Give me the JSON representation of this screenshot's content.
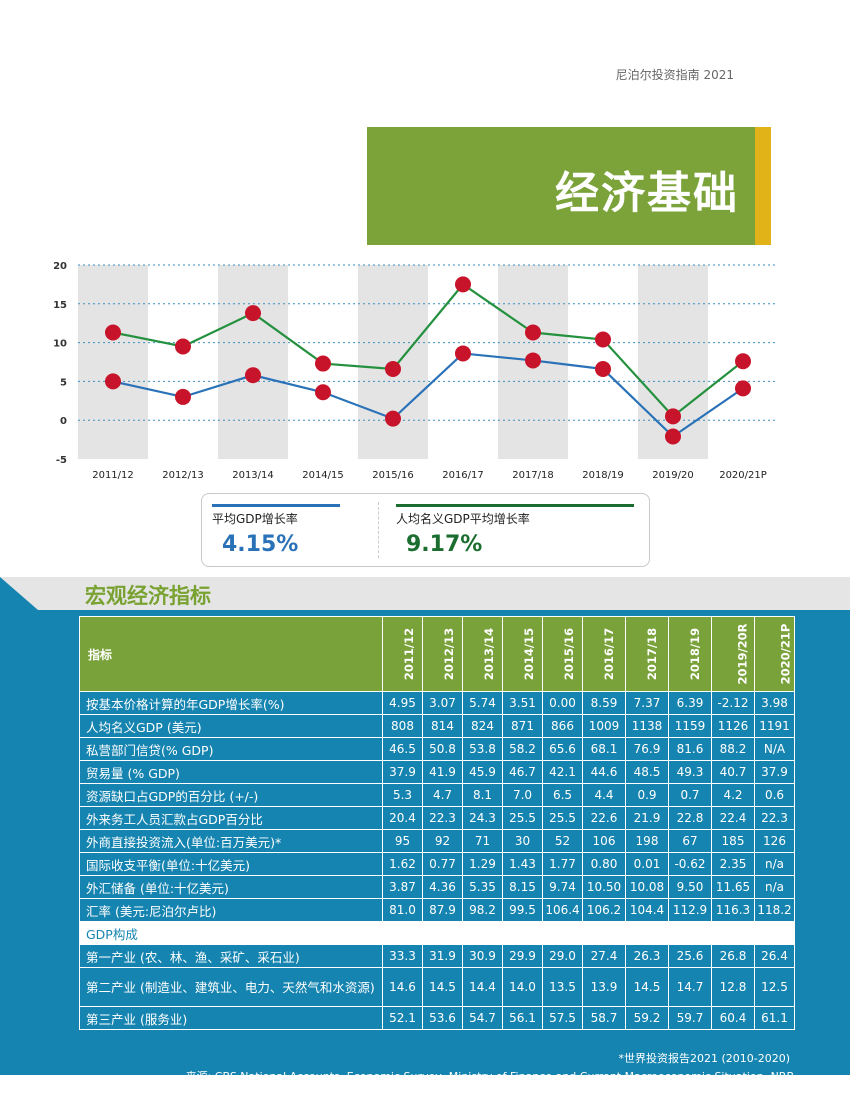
{
  "doc_header": "尼泊尔投资指南 2021",
  "banner_title": "经济基础",
  "chart_data": {
    "type": "line",
    "categories": [
      "2011/12",
      "2012/13",
      "2013/14",
      "2014/15",
      "2015/16",
      "2016/17",
      "2017/18",
      "2018/19",
      "2019/20",
      "2020/21P"
    ],
    "yticks": [
      "20",
      "15",
      "10",
      "5",
      "0",
      "-5"
    ],
    "ylim": [
      -5,
      20
    ],
    "series": [
      {
        "name": "平均GDP增长率",
        "color": "#2a72b8",
        "values": [
          5.0,
          3.0,
          5.8,
          3.6,
          0.2,
          8.6,
          7.7,
          6.6,
          -2.1,
          4.1
        ]
      },
      {
        "name": "人均名义GDP平均增长率",
        "color": "#24913f",
        "values": [
          11.3,
          9.5,
          13.8,
          7.3,
          6.6,
          17.5,
          11.3,
          10.4,
          0.5,
          7.6
        ]
      }
    ],
    "marker_color": "#c8142a",
    "band_color": "#e4e4e4",
    "grid": true
  },
  "legend": [
    {
      "label": "平均GDP增长率",
      "value": "4.15%",
      "line_color": "#2a72b8",
      "value_color": "#2a72b8"
    },
    {
      "label": "人均名义GDP平均增长率",
      "value": "9.17%",
      "line_color": "#1b6e2f",
      "value_color": "#1b6e2f"
    }
  ],
  "section_title": "宏观经济指标",
  "table": {
    "header_label": "指标",
    "years": [
      "2011/12",
      "2012/13",
      "2013/14",
      "2014/15",
      "2015/16",
      "2016/17",
      "2017/18",
      "2018/19",
      "2019/20R",
      "2020/21P"
    ],
    "rows": [
      {
        "label": "按基本价格计算的年GDP增长率(%)",
        "values": [
          "4.95",
          "3.07",
          "5.74",
          "3.51",
          "0.00",
          "8.59",
          "7.37",
          "6.39",
          "-2.12",
          "3.98"
        ]
      },
      {
        "label": "人均名义GDP (美元)",
        "values": [
          "808",
          "814",
          "824",
          "871",
          "866",
          "1009",
          "1138",
          "1159",
          "1126",
          "1191"
        ]
      },
      {
        "label": "私营部门信贷(% GDP)",
        "values": [
          "46.5",
          "50.8",
          "53.8",
          "58.2",
          "65.6",
          "68.1",
          "76.9",
          "81.6",
          "88.2",
          "N/A"
        ]
      },
      {
        "label": "贸易量 (% GDP)",
        "values": [
          "37.9",
          "41.9",
          "45.9",
          "46.7",
          "42.1",
          "44.6",
          "48.5",
          "49.3",
          "40.7",
          "37.9"
        ]
      },
      {
        "label": "资源缺口占GDP的百分比 (+/-)",
        "values": [
          "5.3",
          "4.7",
          "8.1",
          "7.0",
          "6.5",
          "4.4",
          "0.9",
          "0.7",
          "4.2",
          "0.6"
        ]
      },
      {
        "label": "外来务工人员汇款占GDP百分比",
        "values": [
          "20.4",
          "22.3",
          "24.3",
          "25.5",
          "25.5",
          "22.6",
          "21.9",
          "22.8",
          "22.4",
          "22.3"
        ]
      },
      {
        "label": "外商直接投资流入(单位:百万美元)*",
        "values": [
          "95",
          "92",
          "71",
          "30",
          "52",
          "106",
          "198",
          "67",
          "185",
          "126"
        ]
      },
      {
        "label": "国际收支平衡(单位:十亿美元)",
        "values": [
          "1.62",
          "0.77",
          "1.29",
          "1.43",
          "1.77",
          "0.80",
          "0.01",
          "-0.62",
          "2.35",
          "n/a"
        ]
      },
      {
        "label": "外汇储备 (单位:十亿美元)",
        "values": [
          "3.87",
          "4.36",
          "5.35",
          "8.15",
          "9.74",
          "10.50",
          "10.08",
          "9.50",
          "11.65",
          "n/a"
        ]
      },
      {
        "label": "汇率 (美元:尼泊尔卢比)",
        "values": [
          "81.0",
          "87.9",
          "98.2",
          "99.5",
          "106.4",
          "106.2",
          "104.4",
          "112.9",
          "116.3",
          "118.2"
        ]
      }
    ],
    "gdp_section_label": "GDP构成",
    "gdp_rows": [
      {
        "label": "第一产业 (农、林、渔、采矿、采石业)",
        "values": [
          "33.3",
          "31.9",
          "30.9",
          "29.9",
          "29.0",
          "27.4",
          "26.3",
          "25.6",
          "26.8",
          "26.4"
        ]
      },
      {
        "label": "第二产业 (制造业、建筑业、电力、天然气和水资源)",
        "values": [
          "14.6",
          "14.5",
          "14.4",
          "14.0",
          "13.5",
          "13.9",
          "14.5",
          "14.7",
          "12.8",
          "12.5"
        ]
      },
      {
        "label": "第三产业 (服务业)",
        "values": [
          "52.1",
          "53.6",
          "54.7",
          "56.1",
          "57.5",
          "58.7",
          "59.2",
          "59.7",
          "60.4",
          "61.1"
        ]
      }
    ]
  },
  "footnote": "*世界投资报告2021 (2010-2020)",
  "source": "来源: CBS National Accounts, Economic Survey, Ministry of Finance and Current Macroeconomic Situation, NRB"
}
